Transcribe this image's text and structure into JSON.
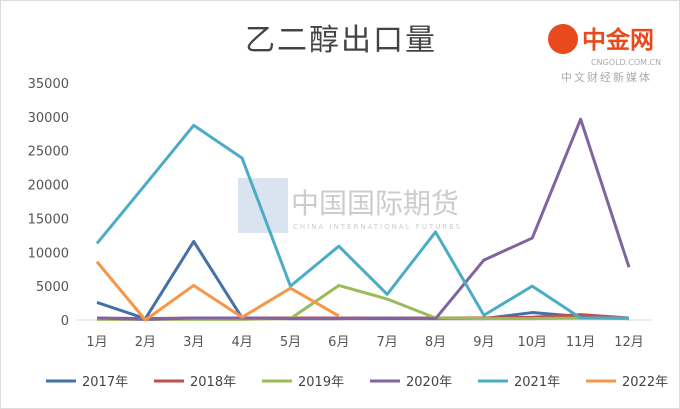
{
  "chart_data": {
    "type": "line",
    "title": "乙二醇出口量",
    "xlabel": "",
    "ylabel": "",
    "categories": [
      "1月",
      "2月",
      "3月",
      "4月",
      "5月",
      "6月",
      "7月",
      "8月",
      "9月",
      "10月",
      "11月",
      "12月"
    ],
    "ylim": [
      0,
      35000
    ],
    "yticks": [
      0,
      5000,
      10000,
      15000,
      20000,
      25000,
      30000,
      35000
    ],
    "grid": false,
    "legend": "bottom",
    "series": [
      {
        "name": "2017年",
        "color": "#4472a8",
        "values": [
          2600,
          200,
          11600,
          300,
          200,
          200,
          200,
          200,
          200,
          1100,
          500,
          200
        ]
      },
      {
        "name": "2018年",
        "color": "#c0504d",
        "values": [
          300,
          200,
          300,
          300,
          300,
          300,
          300,
          300,
          300,
          400,
          800,
          300
        ]
      },
      {
        "name": "2019年",
        "color": "#9bbb59",
        "values": [
          100,
          100,
          100,
          100,
          200,
          5100,
          3100,
          300,
          200,
          200,
          300,
          200
        ]
      },
      {
        "name": "2020年",
        "color": "#8064a2",
        "values": [
          300,
          100,
          300,
          300,
          200,
          200,
          300,
          200,
          8850,
          12100,
          29650,
          7800
        ]
      },
      {
        "name": "2021年",
        "color": "#4bacc6",
        "values": [
          11300,
          20000,
          28750,
          23900,
          5000,
          10900,
          3800,
          13000,
          700,
          5000,
          300,
          300
        ]
      },
      {
        "name": "2022年",
        "color": "#f79646",
        "values": [
          8600,
          0,
          5100,
          400,
          4700,
          600,
          null,
          null,
          null,
          null,
          null,
          null
        ]
      }
    ]
  },
  "watermarks": {
    "cifco": "中国国际期货",
    "cifco_en": "CHINA INTERNATIONAL FUTURES",
    "cngold": "中金网",
    "cngold_url": "CNGOLD.COM.CN",
    "cngold_sub": "中文财经新媒体"
  }
}
